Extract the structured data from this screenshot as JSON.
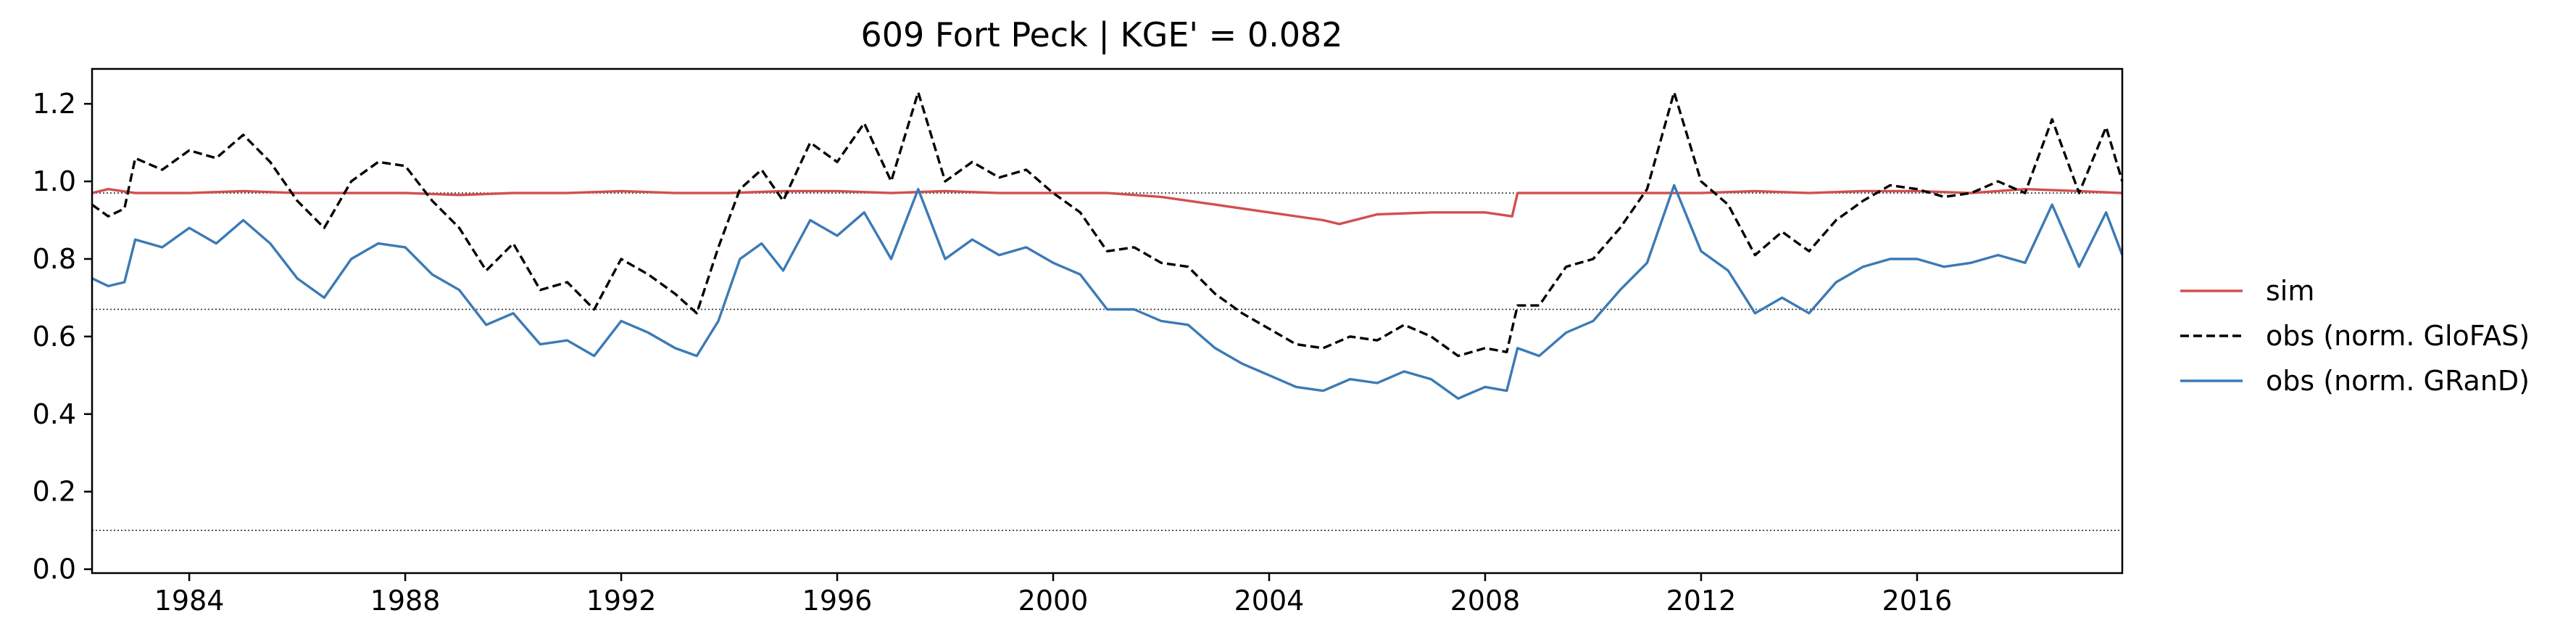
{
  "chart_data": {
    "type": "line",
    "title": "609  Fort Peck | KGE' = 0.082",
    "xlabel": "",
    "ylabel": "",
    "xlim": [
      1982.2,
      2019.8
    ],
    "ylim": [
      -0.01,
      1.29
    ],
    "x_ticks": [
      1984,
      1988,
      1992,
      1996,
      2000,
      2004,
      2008,
      2012,
      2016
    ],
    "y_ticks": [
      0.0,
      0.2,
      0.4,
      0.6,
      0.8,
      1.0,
      1.2
    ],
    "x_tick_labels": [
      "1984",
      "1988",
      "1992",
      "1996",
      "2000",
      "2004",
      "2008",
      "2012",
      "2016"
    ],
    "y_tick_labels": [
      "0.0",
      "0.2",
      "0.4",
      "0.6",
      "0.8",
      "1.0",
      "1.2"
    ],
    "reference_lines": [
      0.97,
      0.67,
      0.1
    ],
    "grid": false,
    "legend_position": "right",
    "series": [
      {
        "name": "sim",
        "color": "#d0504f",
        "dash": "solid",
        "x": [
          1982.2,
          1982.5,
          1983.0,
          1984.0,
          1985.0,
          1986.0,
          1987.0,
          1988.0,
          1989.0,
          1990.0,
          1991.0,
          1992.0,
          1993.0,
          1994.0,
          1995.0,
          1996.0,
          1997.0,
          1998.0,
          1999.0,
          2000.0,
          2001.0,
          2002.0,
          2003.0,
          2004.0,
          2005.0,
          2005.3,
          2006.0,
          2007.0,
          2008.0,
          2008.5,
          2008.6,
          2009.0,
          2010.0,
          2011.0,
          2012.0,
          2013.0,
          2014.0,
          2015.0,
          2016.0,
          2017.0,
          2018.0,
          2019.0,
          2019.8
        ],
        "y": [
          0.97,
          0.98,
          0.97,
          0.97,
          0.975,
          0.97,
          0.97,
          0.97,
          0.965,
          0.97,
          0.97,
          0.975,
          0.97,
          0.97,
          0.975,
          0.975,
          0.97,
          0.975,
          0.97,
          0.97,
          0.97,
          0.96,
          0.94,
          0.92,
          0.9,
          0.89,
          0.915,
          0.92,
          0.92,
          0.91,
          0.97,
          0.97,
          0.97,
          0.97,
          0.97,
          0.975,
          0.97,
          0.975,
          0.975,
          0.97,
          0.98,
          0.975,
          0.97
        ]
      },
      {
        "name": "obs (norm. GloFAS)",
        "color": "#000000",
        "dash": "dashed",
        "x": [
          1982.2,
          1982.5,
          1982.8,
          1983.0,
          1983.5,
          1984.0,
          1984.5,
          1985.0,
          1985.5,
          1986.0,
          1986.5,
          1987.0,
          1987.5,
          1988.0,
          1988.5,
          1989.0,
          1989.5,
          1990.0,
          1990.5,
          1991.0,
          1991.5,
          1992.0,
          1992.5,
          1993.0,
          1993.4,
          1993.8,
          1994.2,
          1994.6,
          1995.0,
          1995.5,
          1996.0,
          1996.5,
          1997.0,
          1997.5,
          1998.0,
          1998.5,
          1999.0,
          1999.5,
          2000.0,
          2000.5,
          2001.0,
          2001.5,
          2002.0,
          2002.5,
          2003.0,
          2003.5,
          2004.0,
          2004.5,
          2005.0,
          2005.5,
          2006.0,
          2006.5,
          2007.0,
          2007.5,
          2008.0,
          2008.4,
          2008.6,
          2009.0,
          2009.5,
          2010.0,
          2010.5,
          2011.0,
          2011.5,
          2012.0,
          2012.5,
          2013.0,
          2013.5,
          2014.0,
          2014.5,
          2015.0,
          2015.5,
          2016.0,
          2016.5,
          2017.0,
          2017.5,
          2018.0,
          2018.5,
          2019.0,
          2019.5,
          2019.8
        ],
        "y": [
          0.94,
          0.91,
          0.93,
          1.06,
          1.03,
          1.08,
          1.06,
          1.12,
          1.05,
          0.95,
          0.88,
          1.0,
          1.05,
          1.04,
          0.95,
          0.88,
          0.77,
          0.84,
          0.72,
          0.74,
          0.67,
          0.8,
          0.76,
          0.71,
          0.66,
          0.83,
          0.98,
          1.03,
          0.95,
          1.1,
          1.05,
          1.15,
          1.0,
          1.23,
          1.0,
          1.05,
          1.01,
          1.03,
          0.97,
          0.92,
          0.82,
          0.83,
          0.79,
          0.78,
          0.71,
          0.66,
          0.62,
          0.58,
          0.57,
          0.6,
          0.59,
          0.63,
          0.6,
          0.55,
          0.57,
          0.56,
          0.68,
          0.68,
          0.78,
          0.8,
          0.88,
          0.98,
          1.23,
          1.0,
          0.94,
          0.81,
          0.87,
          0.82,
          0.9,
          0.95,
          0.99,
          0.98,
          0.96,
          0.97,
          1.0,
          0.97,
          1.16,
          0.97,
          1.14,
          1.0
        ]
      },
      {
        "name": "obs (norm. GRanD)",
        "color": "#3b7ab5",
        "dash": "solid",
        "x": [
          1982.2,
          1982.5,
          1982.8,
          1983.0,
          1983.5,
          1984.0,
          1984.5,
          1985.0,
          1985.5,
          1986.0,
          1986.5,
          1987.0,
          1987.5,
          1988.0,
          1988.5,
          1989.0,
          1989.5,
          1990.0,
          1990.5,
          1991.0,
          1991.5,
          1992.0,
          1992.5,
          1993.0,
          1993.4,
          1993.8,
          1994.2,
          1994.6,
          1995.0,
          1995.5,
          1996.0,
          1996.5,
          1997.0,
          1997.5,
          1998.0,
          1998.5,
          1999.0,
          1999.5,
          2000.0,
          2000.5,
          2001.0,
          2001.5,
          2002.0,
          2002.5,
          2003.0,
          2003.5,
          2004.0,
          2004.5,
          2005.0,
          2005.5,
          2006.0,
          2006.5,
          2007.0,
          2007.5,
          2008.0,
          2008.4,
          2008.6,
          2009.0,
          2009.5,
          2010.0,
          2010.5,
          2011.0,
          2011.5,
          2012.0,
          2012.5,
          2013.0,
          2013.5,
          2014.0,
          2014.5,
          2015.0,
          2015.5,
          2016.0,
          2016.5,
          2017.0,
          2017.5,
          2018.0,
          2018.5,
          2019.0,
          2019.5,
          2019.8
        ],
        "y": [
          0.75,
          0.73,
          0.74,
          0.85,
          0.83,
          0.88,
          0.84,
          0.9,
          0.84,
          0.75,
          0.7,
          0.8,
          0.84,
          0.83,
          0.76,
          0.72,
          0.63,
          0.66,
          0.58,
          0.59,
          0.55,
          0.64,
          0.61,
          0.57,
          0.55,
          0.64,
          0.8,
          0.84,
          0.77,
          0.9,
          0.86,
          0.92,
          0.8,
          0.98,
          0.8,
          0.85,
          0.81,
          0.83,
          0.79,
          0.76,
          0.67,
          0.67,
          0.64,
          0.63,
          0.57,
          0.53,
          0.5,
          0.47,
          0.46,
          0.49,
          0.48,
          0.51,
          0.49,
          0.44,
          0.47,
          0.46,
          0.57,
          0.55,
          0.61,
          0.64,
          0.72,
          0.79,
          0.99,
          0.82,
          0.77,
          0.66,
          0.7,
          0.66,
          0.74,
          0.78,
          0.8,
          0.8,
          0.78,
          0.79,
          0.81,
          0.79,
          0.94,
          0.78,
          0.92,
          0.81
        ]
      }
    ]
  }
}
